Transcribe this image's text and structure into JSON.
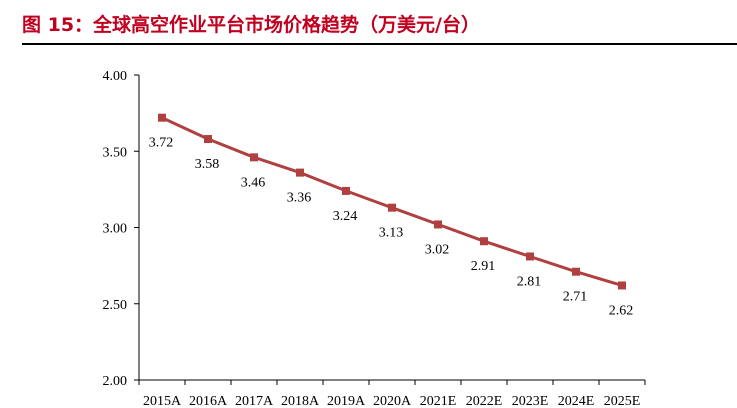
{
  "figure": {
    "title": "图 15：全球高空作业平台市场价格趋势（万美元/台）"
  },
  "chart_data": {
    "type": "line",
    "title": "图 15：全球高空作业平台市场价格趋势（万美元/台）",
    "categories": [
      "2015A",
      "2016A",
      "2017A",
      "2018A",
      "2019A",
      "2020A",
      "2021E",
      "2022E",
      "2023E",
      "2024E",
      "2025E"
    ],
    "series": [
      {
        "values": [
          3.72,
          3.58,
          3.46,
          3.36,
          3.24,
          3.13,
          3.02,
          2.91,
          2.81,
          2.71,
          2.62
        ]
      }
    ],
    "ylim": [
      2.0,
      4.0
    ],
    "yticks": [
      "2.00",
      "2.50",
      "3.00",
      "3.50",
      "4.00"
    ],
    "ytick_values": [
      2.0,
      2.5,
      3.0,
      3.5,
      4.0
    ],
    "xlabel": "",
    "ylabel": "",
    "data_labels": [
      "3.72",
      "3.58",
      "3.46",
      "3.36",
      "3.24",
      "3.13",
      "3.02",
      "2.91",
      "2.81",
      "2.71",
      "2.62"
    ],
    "grid": false,
    "legend": "none",
    "line_color": "#b0403f",
    "marker": "square",
    "title_color": "#c0001e"
  }
}
